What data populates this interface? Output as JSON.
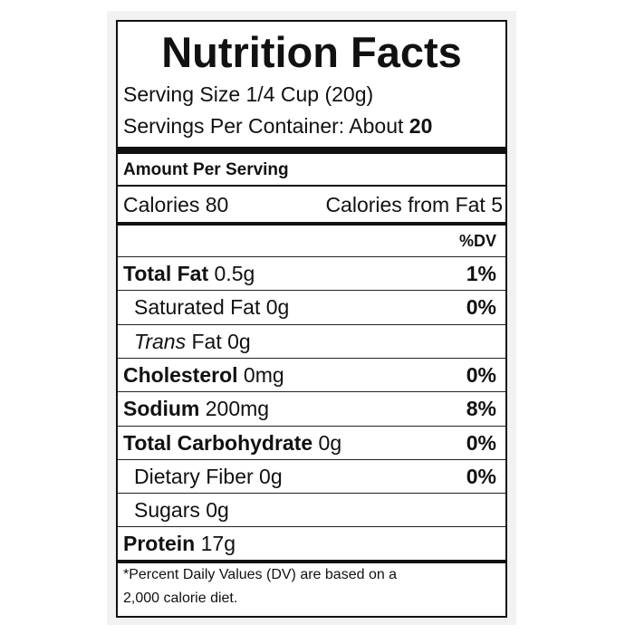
{
  "header": {
    "title": "Nutrition Facts",
    "serving_size": "Serving Size 1/4 Cup (20g)",
    "servings_label": "Servings Per Container: About",
    "servings_value": "20"
  },
  "amount_per_serving": "Amount Per Serving",
  "calories": "Calories 80",
  "calories_from_fat": "Calories from Fat 5",
  "dv_header": "%DV",
  "rows": [
    {
      "name": "Total Fat",
      "amount": "0.5g",
      "dv": "1%",
      "bold": true,
      "indent": false
    },
    {
      "name": "Saturated Fat",
      "amount": "0g",
      "dv": "0%",
      "bold": false,
      "indent": true
    },
    {
      "name_italic": "Trans",
      "name": "Fat",
      "amount": "0g",
      "bold": false,
      "indent": true
    },
    {
      "name": "Cholesterol",
      "amount": "0mg",
      "dv": "0%",
      "bold": true,
      "indent": false
    },
    {
      "name": "Sodium",
      "amount": "200mg",
      "dv": "8%",
      "bold": true,
      "indent": false
    },
    {
      "name": "Total Carbohydrate",
      "amount": "0g",
      "dv": "0%",
      "bold": true,
      "indent": false
    },
    {
      "name": "Dietary Fiber",
      "amount": "0g",
      "dv": "0%",
      "bold": false,
      "indent": true
    },
    {
      "name": "Sugars",
      "amount": "0g",
      "bold": false,
      "indent": true
    },
    {
      "name": "Protein",
      "amount": "17g",
      "bold": true,
      "indent": false
    }
  ],
  "footnote": [
    "*Percent Daily Values (DV) are based on a",
    "2,000 calorie diet."
  ]
}
